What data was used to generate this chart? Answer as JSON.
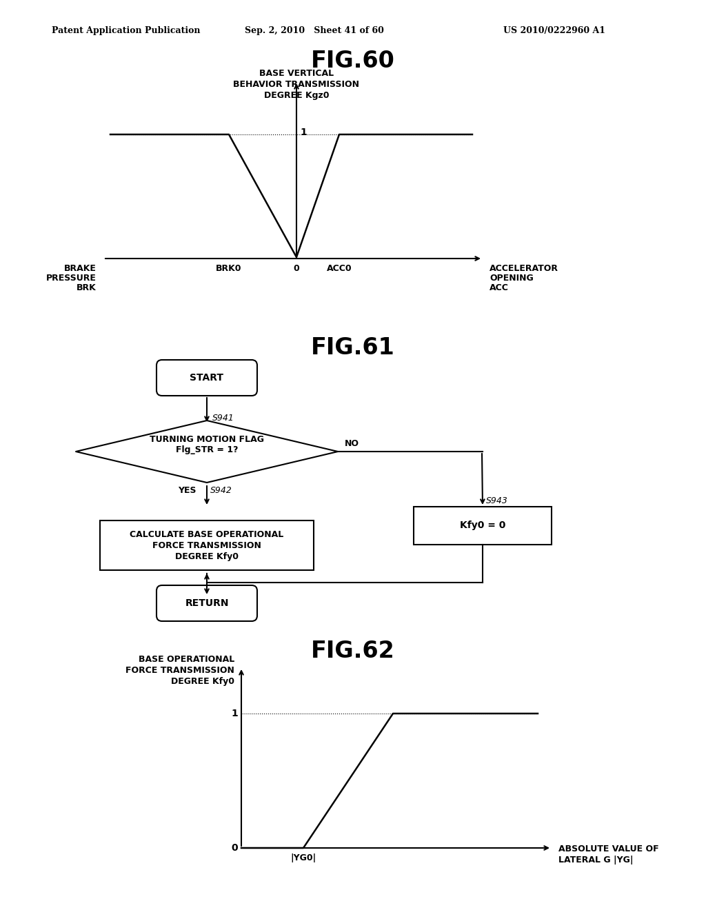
{
  "bg_color": "#ffffff",
  "header_left": "Patent Application Publication",
  "header_mid": "Sep. 2, 2010   Sheet 41 of 60",
  "header_right": "US 2010/0222960 A1",
  "fig60_title": "FIG.60",
  "fig60_ylabel_line1": "BASE VERTICAL",
  "fig60_ylabel_line2": "BEHAVIOR TRANSMISSION",
  "fig60_ylabel_line3": "DEGREE Kgz0",
  "fig60_xlabel_left1": "BRAKE",
  "fig60_xlabel_left2": "PRESSURE",
  "fig60_xlabel_left3": "BRK",
  "fig60_xlabel_right1": "ACCELERATOR",
  "fig60_xlabel_right2": "OPENING",
  "fig60_xlabel_right3": "ACC",
  "fig60_brk0": "BRK0",
  "fig60_zero": "0",
  "fig60_acc0": "ACC0",
  "fig60_y1": "1",
  "fig61_title": "FIG.61",
  "fig61_start": "START",
  "fig61_s941": "S941",
  "fig61_diamond": "TURNING MOTION FLAG\nFlg_STR = 1?",
  "fig61_yes": "YES",
  "fig61_no": "NO",
  "fig61_s942": "S942",
  "fig61_box1_line1": "CALCULATE BASE OPERATIONAL",
  "fig61_box1_line2": "FORCE TRANSMISSION",
  "fig61_box1_line3": "DEGREE Kfy0",
  "fig61_box2": "Kfy0 = 0",
  "fig61_s943": "S943",
  "fig61_return": "RETURN",
  "fig62_title": "FIG.62",
  "fig62_ylabel_line1": "BASE OPERATIONAL",
  "fig62_ylabel_line2": "FORCE TRANSMISSION",
  "fig62_ylabel_line3": "DEGREE Kfy0",
  "fig62_xlabel_line1": "ABSOLUTE VALUE OF",
  "fig62_xlabel_line2": "LATERAL G |YG|",
  "fig62_xaxis_tick": "|YG0|",
  "fig62_y0": "0",
  "fig62_y1": "1"
}
